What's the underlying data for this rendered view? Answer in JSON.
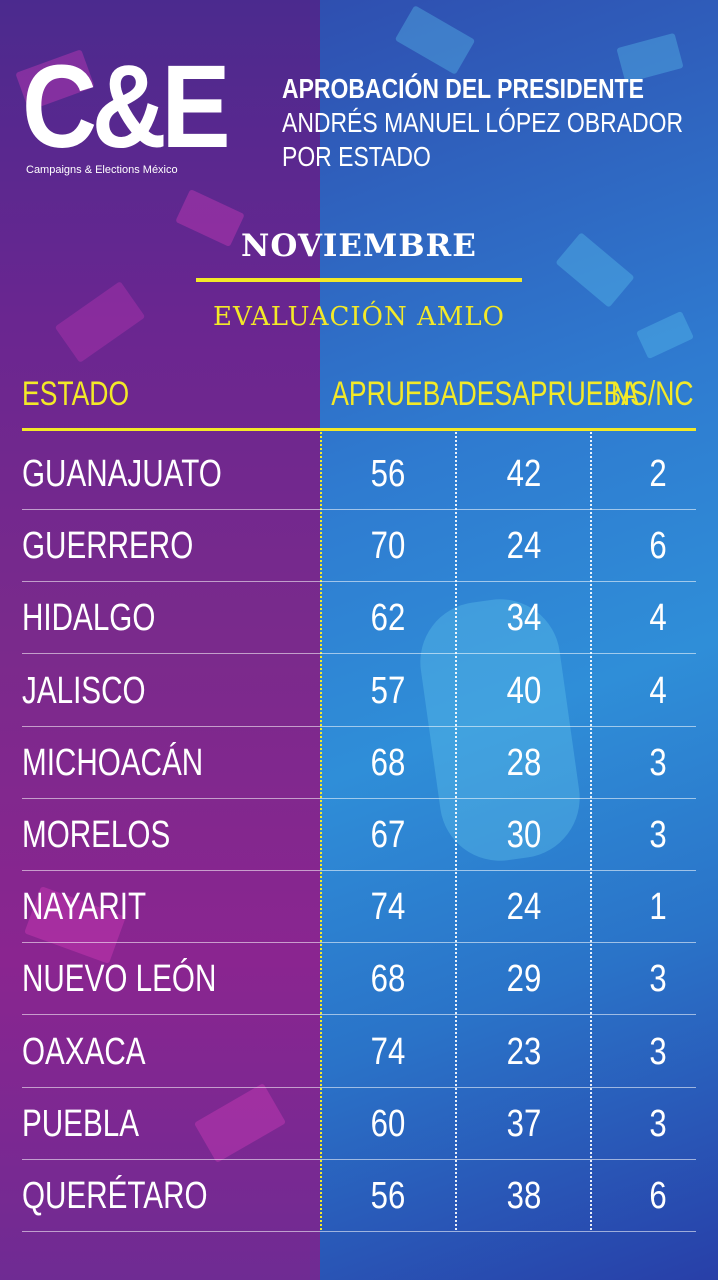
{
  "brand": {
    "logo_text": "C&E",
    "logo_subtitle": "Campaigns & Elections México"
  },
  "headline": {
    "line1": "APROBACIÓN DEL PRESIDENTE",
    "line2": "ANDRÉS MANUEL LÓPEZ OBRADOR",
    "line3": "POR ESTADO"
  },
  "month": "NOVIEMBRE",
  "subtitle": "EVALUACIÓN AMLO",
  "colors": {
    "accent": "#f3e928",
    "text": "#ffffff",
    "left_bg": "#7a2a8c",
    "right_bg": "#2f8ed8"
  },
  "chart_data": {
    "type": "table",
    "columns": [
      "ESTADO",
      "APRUEBA",
      "DESAPRUEBA",
      "NS/NC"
    ],
    "rows": [
      {
        "estado": "GUANAJUATO",
        "aprueba": 56,
        "desaprueba": 42,
        "nsnc": 2
      },
      {
        "estado": "GUERRERO",
        "aprueba": 70,
        "desaprueba": 24,
        "nsnc": 6
      },
      {
        "estado": "HIDALGO",
        "aprueba": 62,
        "desaprueba": 34,
        "nsnc": 4
      },
      {
        "estado": "JALISCO",
        "aprueba": 57,
        "desaprueba": 40,
        "nsnc": 4
      },
      {
        "estado": "MICHOACÁN",
        "aprueba": 68,
        "desaprueba": 28,
        "nsnc": 3
      },
      {
        "estado": "MORELOS",
        "aprueba": 67,
        "desaprueba": 30,
        "nsnc": 3
      },
      {
        "estado": "NAYARIT",
        "aprueba": 74,
        "desaprueba": 24,
        "nsnc": 1
      },
      {
        "estado": "NUEVO LEÓN",
        "aprueba": 68,
        "desaprueba": 29,
        "nsnc": 3
      },
      {
        "estado": "OAXACA",
        "aprueba": 74,
        "desaprueba": 23,
        "nsnc": 3
      },
      {
        "estado": "PUEBLA",
        "aprueba": 60,
        "desaprueba": 37,
        "nsnc": 3
      },
      {
        "estado": "QUERÉTARO",
        "aprueba": 56,
        "desaprueba": 38,
        "nsnc": 6
      }
    ]
  }
}
